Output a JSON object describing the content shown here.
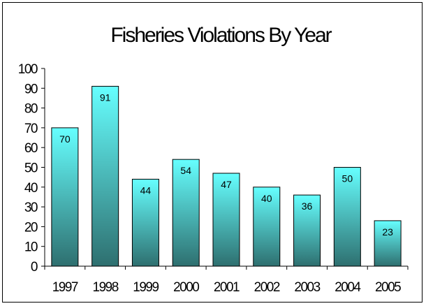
{
  "chart_data": {
    "type": "bar",
    "title": "Fisheries Violations By Year",
    "xlabel": "",
    "ylabel": "",
    "categories": [
      "1997",
      "1998",
      "1999",
      "2000",
      "2001",
      "2002",
      "2003",
      "2004",
      "2005"
    ],
    "values": [
      70,
      91,
      44,
      54,
      47,
      40,
      36,
      50,
      23
    ],
    "ylim": [
      0,
      100
    ],
    "y_ticks": [
      "0",
      "10",
      "20",
      "30",
      "40",
      "50",
      "60",
      "70",
      "80",
      "90",
      "100"
    ],
    "data_labels": [
      "70",
      "91",
      "44",
      "54",
      "47",
      "40",
      "36",
      "50",
      "23"
    ],
    "grid": false,
    "legend": "none",
    "colors": {
      "bar_top": "#66FFFF",
      "bar_bottom": "#2E6F6F",
      "bar_stroke": "#000000",
      "axis": "#000000"
    }
  }
}
